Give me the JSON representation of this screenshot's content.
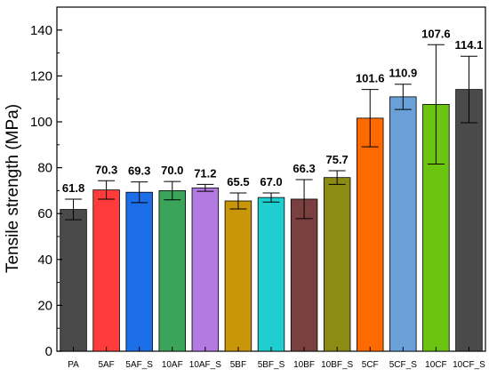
{
  "chart_data": {
    "type": "bar",
    "title": "",
    "xlabel": "",
    "ylabel": "Tensile strength (MPa)",
    "ylim": [
      0,
      150
    ],
    "yticks": [
      0,
      20,
      40,
      60,
      80,
      100,
      120,
      140
    ],
    "grid": false,
    "legend": "none",
    "categories": [
      "PA",
      "5AF",
      "5AF_S",
      "10AF",
      "10AF_S",
      "5BF",
      "5BF_S",
      "10BF",
      "10BF_S",
      "5CF",
      "5CF_S",
      "10CF",
      "10CF_S"
    ],
    "values": [
      61.8,
      70.3,
      69.3,
      70.0,
      71.2,
      65.5,
      67.0,
      66.3,
      75.7,
      101.6,
      110.9,
      107.6,
      114.1
    ],
    "value_labels": [
      "61.8",
      "70.3",
      "69.3",
      "70.0",
      "71.2",
      "65.5",
      "67.0",
      "66.3",
      "75.7",
      "101.6",
      "110.9",
      "107.6",
      "114.1"
    ],
    "error": [
      4.5,
      4.0,
      4.5,
      4.0,
      1.5,
      3.5,
      2.0,
      8.5,
      3.0,
      12.5,
      5.5,
      26.0,
      14.5
    ],
    "colors": [
      "#4a4a4a",
      "#ff3b3b",
      "#1b6ee8",
      "#3aa45a",
      "#b27ae0",
      "#c9960a",
      "#1fcfd0",
      "#7a4040",
      "#8c8c14",
      "#ff6a00",
      "#6a9fd8",
      "#6bc410",
      "#4a4a4a"
    ]
  }
}
